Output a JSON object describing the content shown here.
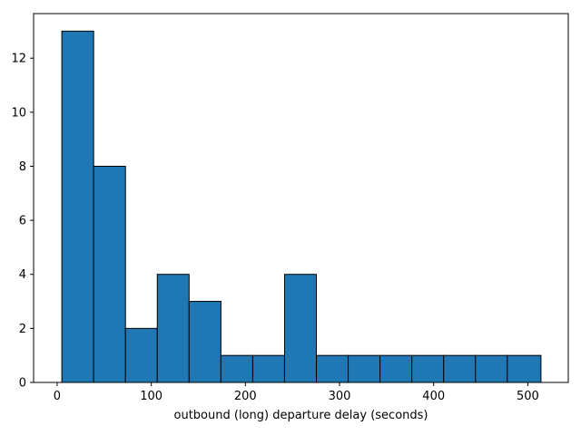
{
  "chart_data": {
    "type": "bar",
    "title": "",
    "xlabel": "outbound (long) departure delay (seconds)",
    "ylabel": "",
    "bin_edges": [
      5,
      38.8,
      72.6,
      106.4,
      140.2,
      174,
      207.8,
      241.6,
      275.4,
      309.2,
      343,
      376.8,
      410.6,
      444.4,
      478.2,
      514
    ],
    "values": [
      13,
      8,
      2,
      4,
      3,
      1,
      1,
      4,
      1,
      1,
      1,
      1,
      1,
      1,
      1
    ],
    "xlim": [
      -25,
      543
    ],
    "ylim": [
      0,
      13.65
    ],
    "xticks": [
      0,
      100,
      200,
      300,
      400,
      500
    ],
    "yticks": [
      0,
      2,
      4,
      6,
      8,
      10,
      12
    ],
    "bar_color": "#1f77b4",
    "edge_color": "#000000",
    "grid": false
  }
}
